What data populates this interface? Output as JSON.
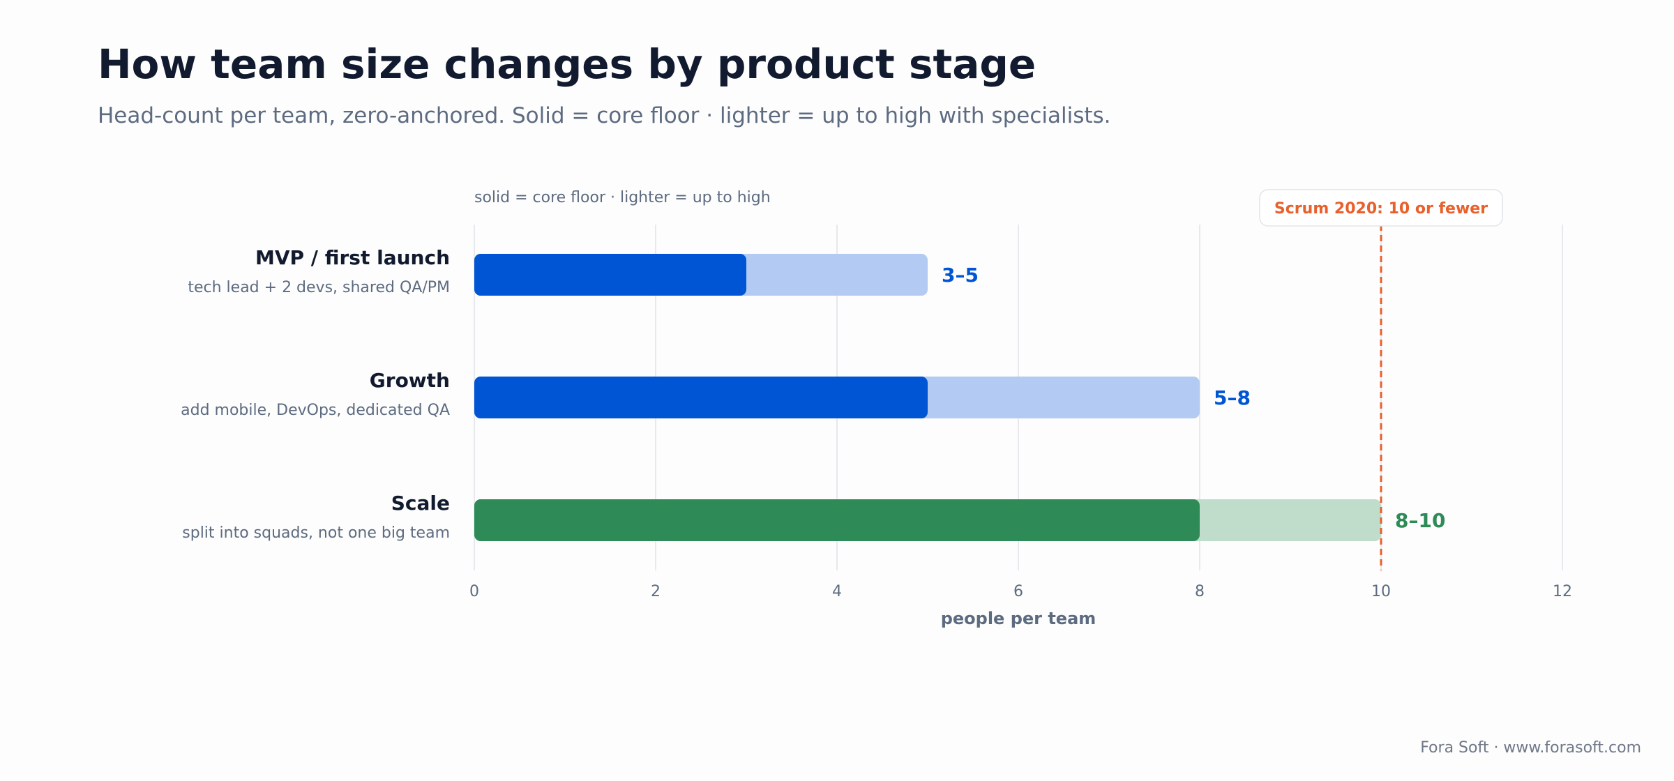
{
  "title": "How team size changes by product stage",
  "subtitle": "Head-count per team, zero-anchored. Solid = core floor · lighter = up to high with specialists.",
  "footer": "Fora Soft · www.forasoft.com",
  "chart_data": {
    "type": "bar",
    "orientation": "horizontal",
    "legend_note": "solid = core floor · lighter = up to high",
    "xlabel": "people per team",
    "ylabel": "",
    "xlim": [
      0,
      12
    ],
    "xticks": [
      0,
      2,
      4,
      6,
      8,
      10,
      12
    ],
    "grid": true,
    "categories": [
      "MVP / first launch",
      "Growth",
      "Scale"
    ],
    "category_notes": [
      "tech lead + 2 devs, shared QA/PM",
      "add mobile, DevOps, dedicated QA",
      "split into squads, not one big team"
    ],
    "series": [
      {
        "name": "core floor",
        "values": [
          3,
          5,
          8
        ]
      },
      {
        "name": "up to high",
        "values": [
          5,
          8,
          10
        ]
      }
    ],
    "data_labels": [
      "3–5",
      "5–8",
      "8–10"
    ],
    "bar_colors": [
      "#0055d4",
      "#0055d4",
      "#2e8b57"
    ],
    "bar_light_colors": [
      "#b3caf2",
      "#b3caf2",
      "#c0dccb"
    ],
    "reference_line": {
      "value": 10,
      "label": "Scrum 2020: 10 or fewer",
      "color": "#e8602c"
    }
  }
}
